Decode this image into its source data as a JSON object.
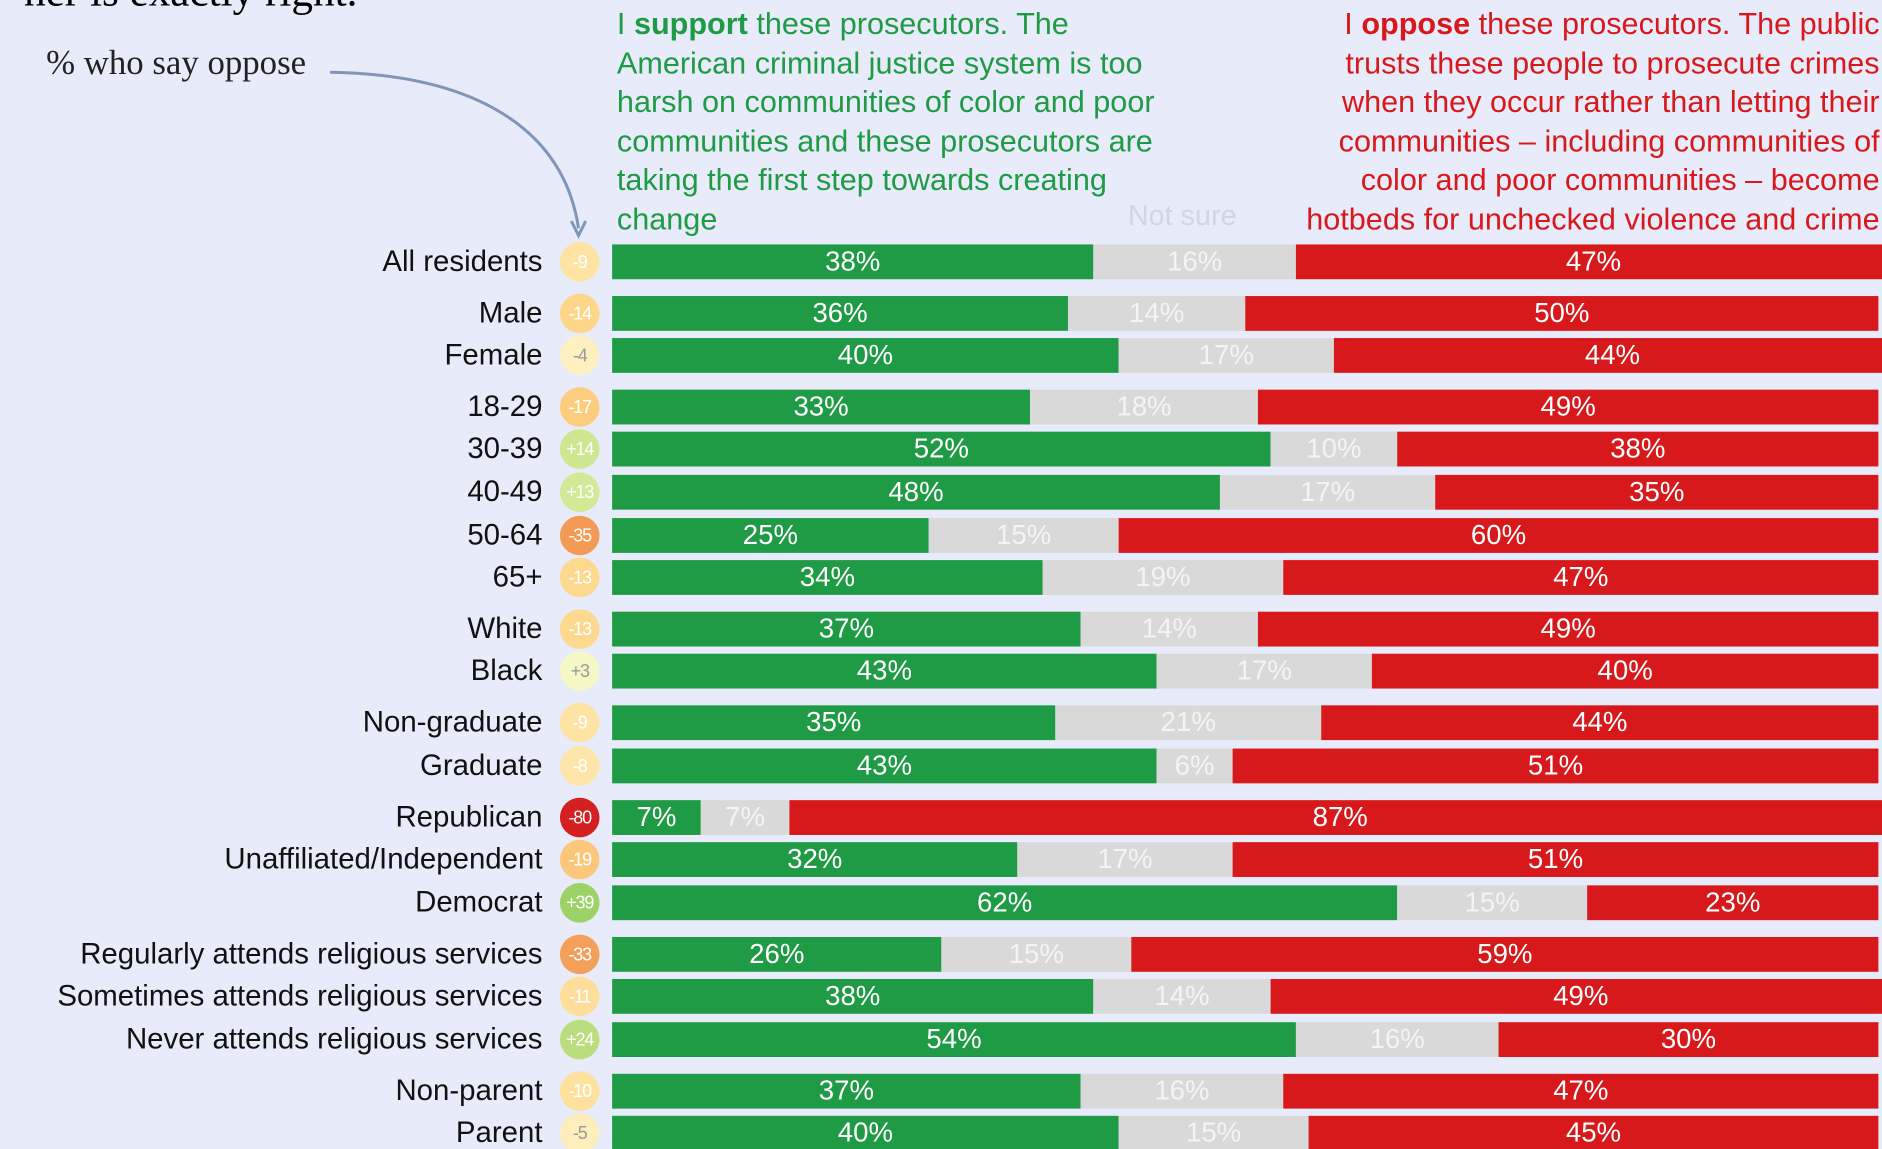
{
  "chart_data": {
    "type": "bar",
    "orientation": "horizontal",
    "stacked": true,
    "title": "her is exactly right.",
    "net_label": "% who say oppose",
    "support_note": {
      "before": "I ",
      "bold": "support",
      "after": " these prosecutors. The American criminal justice system is too harsh on communities of color and poor communities and these prosecutors are taking the first step towards creating change"
    },
    "oppose_note": {
      "before": "I ",
      "bold": "oppose",
      "after": " these prosecutors. The public trusts these people to prosecute crimes when they occur rather than letting their communities – including communities of color and poor communities – become hotbeds for unchecked violence and crime"
    },
    "categories": [
      "All residents",
      "Male",
      "Female",
      "18-29",
      "30-39",
      "40-49",
      "50-64",
      "65+",
      "White",
      "Black",
      "Non-graduate",
      "Graduate",
      "Republican",
      "Unaffiliated/Independent",
      "Democrat",
      "Regularly attends religious services",
      "Sometimes attends religious services",
      "Never attends religious services",
      "Non-parent",
      "Parent"
    ],
    "xlim": [
      0,
      100
    ],
    "series": [
      {
        "color": "#1f9a45",
        "values": [
          38,
          36,
          40,
          33,
          52,
          48,
          25,
          34,
          37,
          43,
          35,
          43,
          7,
          32,
          62,
          26,
          38,
          54,
          37,
          40
        ],
        "value_labels": [
          "38%",
          "36%",
          "40%",
          "33%",
          "52%",
          "48%",
          "25%",
          "34%",
          "37%",
          "43%",
          "35%",
          "43%",
          "7%",
          "32%",
          "62%",
          "26%",
          "38%",
          "54%",
          "37%",
          "40%"
        ]
      },
      {
        "name": "Not sure",
        "color": "#d9d9d9",
        "values": [
          16,
          14,
          17,
          18,
          10,
          17,
          15,
          19,
          14,
          17,
          21,
          6,
          7,
          17,
          15,
          15,
          14,
          16,
          16,
          15
        ],
        "value_labels": [
          "16%",
          "14%",
          "17%",
          "18%",
          "10%",
          "17%",
          "15%",
          "19%",
          "14%",
          "17%",
          "21%",
          "6%",
          "7%",
          "17%",
          "15%",
          "15%",
          "14%",
          "16%",
          "16%",
          "15%"
        ]
      },
      {
        "color": "#d7191c",
        "values": [
          47,
          50,
          44,
          49,
          38,
          35,
          60,
          47,
          49,
          40,
          44,
          51,
          87,
          51,
          23,
          59,
          49,
          30,
          47,
          45
        ],
        "value_labels": [
          "47%",
          "50%",
          "44%",
          "49%",
          "38%",
          "35%",
          "60%",
          "47%",
          "49%",
          "40%",
          "44%",
          "51%",
          "87%",
          "51%",
          "23%",
          "59%",
          "49%",
          "30%",
          "47%",
          "45%"
        ]
      }
    ],
    "net": {
      "values": [
        -9,
        -14,
        -4,
        -17,
        14,
        13,
        -35,
        -13,
        -13,
        3,
        -9,
        -8,
        -80,
        -19,
        39,
        -33,
        -11,
        24,
        -10,
        -5
      ],
      "value_labels": [
        "-9",
        "-14",
        "-4",
        "-17",
        "+14",
        "+13",
        "-35",
        "-13",
        "-13",
        "+3",
        "-9",
        "-8",
        "-80",
        "-19",
        "+39",
        "-33",
        "-11",
        "+24",
        "-10",
        "-5"
      ]
    }
  }
}
